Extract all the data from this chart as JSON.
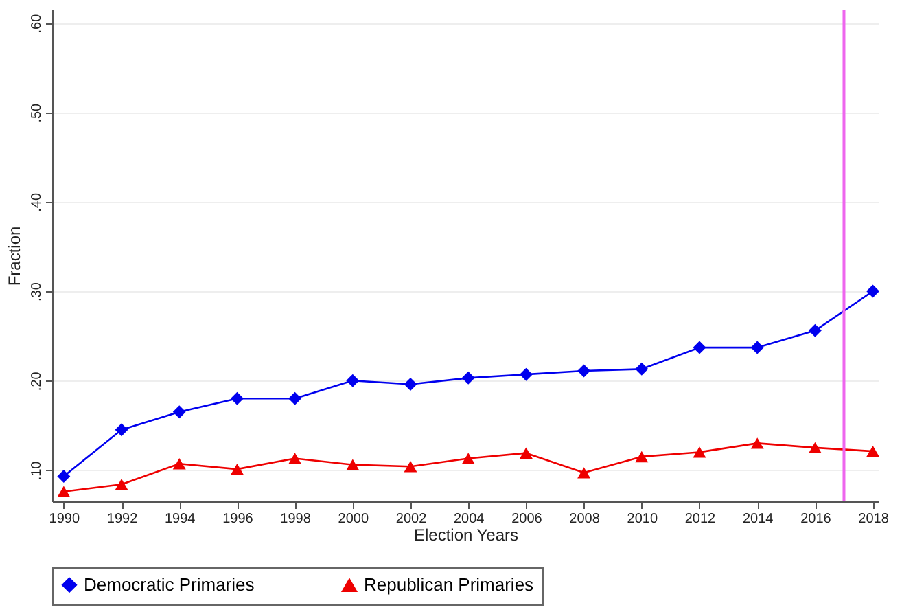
{
  "chart_data": {
    "type": "line",
    "xlabel": "Election Years",
    "ylabel": "Fraction",
    "x": [
      1990,
      1992,
      1994,
      1996,
      1998,
      2000,
      2002,
      2004,
      2006,
      2008,
      2010,
      2012,
      2014,
      2016,
      2018
    ],
    "series": [
      {
        "name": "Democratic Primaries",
        "color": "#0000ee",
        "marker": "diamond",
        "values": [
          0.093,
          0.145,
          0.165,
          0.18,
          0.18,
          0.2,
          0.196,
          0.203,
          0.207,
          0.211,
          0.213,
          0.237,
          0.237,
          0.256,
          0.3
        ]
      },
      {
        "name": "Republican Primaries",
        "color": "#ee0000",
        "marker": "triangle",
        "values": [
          0.076,
          0.084,
          0.107,
          0.101,
          0.113,
          0.106,
          0.104,
          0.113,
          0.119,
          0.097,
          0.115,
          0.12,
          0.13,
          0.125,
          0.121
        ]
      }
    ],
    "xlim": [
      1989.6,
      2018.2
    ],
    "xticks": [
      1990,
      1992,
      1994,
      1996,
      1998,
      2000,
      2002,
      2004,
      2006,
      2008,
      2010,
      2012,
      2014,
      2016,
      2018
    ],
    "ylim": [
      0.065,
      0.615
    ],
    "yticks": [
      {
        "value": 0.1,
        "label": ".10"
      },
      {
        "value": 0.2,
        "label": ".20"
      },
      {
        "value": 0.3,
        "label": ".30"
      },
      {
        "value": 0.4,
        "label": ".40"
      },
      {
        "value": 0.5,
        "label": ".50"
      },
      {
        "value": 0.6,
        "label": ".60"
      }
    ],
    "ref_lines": [
      {
        "axis": "x",
        "value": 2017,
        "color": "#ee66ee"
      }
    ],
    "grid": "y",
    "legend": "bottom",
    "line_style": "solid"
  }
}
